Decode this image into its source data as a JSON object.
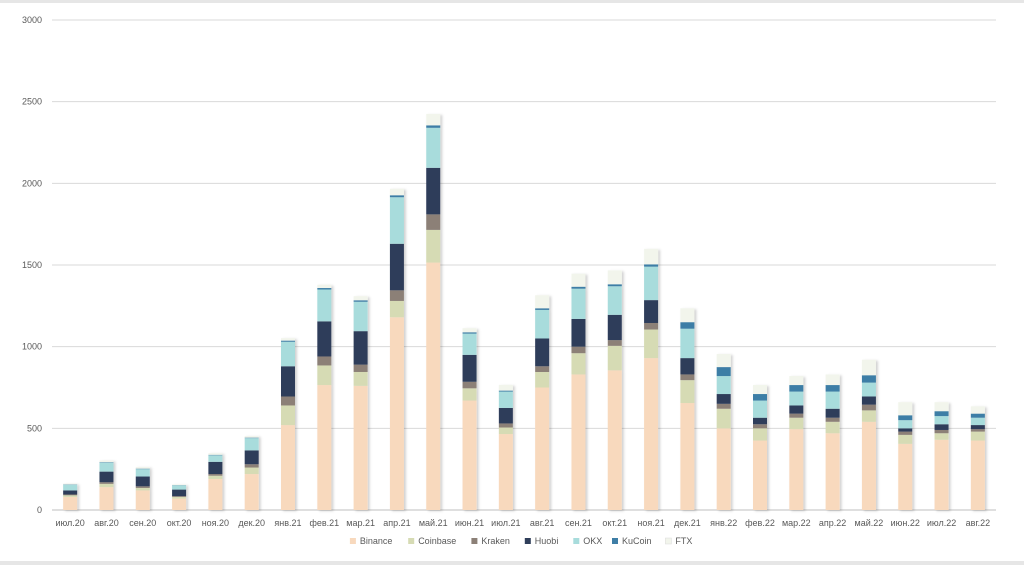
{
  "chart_data": {
    "type": "bar",
    "stacked": true,
    "title": "",
    "xlabel": "",
    "ylabel": "",
    "ylim": [
      0,
      3000
    ],
    "yticks": [
      0,
      500,
      1000,
      1500,
      2000,
      2500,
      3000
    ],
    "grid": "horizontal",
    "legend_position": "bottom",
    "categories": [
      "июл.20",
      "авг.20",
      "сен.20",
      "окт.20",
      "ноя.20",
      "дек.20",
      "янв.21",
      "фев.21",
      "мар.21",
      "апр.21",
      "май.21",
      "июн.21",
      "июл.21",
      "авг.21",
      "сен.21",
      "окт.21",
      "ноя.21",
      "дек.21",
      "янв.22",
      "фев.22",
      "мар.22",
      "апр.22",
      "май.22",
      "июн.22",
      "июл.22",
      "авг.22"
    ],
    "series": [
      {
        "name": "Binance",
        "color": "#f8d9bd",
        "values": [
          80,
          140,
          120,
          70,
          190,
          220,
          520,
          765,
          760,
          1180,
          1515,
          670,
          465,
          750,
          830,
          855,
          930,
          655,
          500,
          425,
          495,
          470,
          540,
          405,
          430,
          425
        ]
      },
      {
        "name": "Coinbase",
        "color": "#d6dbb4",
        "values": [
          10,
          20,
          15,
          10,
          20,
          40,
          120,
          120,
          85,
          100,
          200,
          75,
          40,
          95,
          130,
          150,
          175,
          140,
          120,
          75,
          70,
          70,
          70,
          55,
          40,
          55
        ]
      },
      {
        "name": "Kraken",
        "color": "#8c8077",
        "values": [
          5,
          10,
          10,
          5,
          10,
          20,
          55,
          55,
          45,
          65,
          95,
          40,
          25,
          35,
          40,
          35,
          40,
          35,
          30,
          25,
          25,
          25,
          35,
          20,
          20,
          15
        ]
      },
      {
        "name": "Huobi",
        "color": "#2f3e5a",
        "values": [
          25,
          65,
          60,
          40,
          75,
          85,
          185,
          215,
          205,
          285,
          285,
          165,
          95,
          170,
          170,
          155,
          140,
          100,
          60,
          40,
          50,
          55,
          50,
          20,
          35,
          25
        ]
      },
      {
        "name": "OKX",
        "color": "#a8dcdc",
        "values": [
          35,
          55,
          45,
          25,
          40,
          75,
          150,
          195,
          180,
          285,
          245,
          130,
          100,
          175,
          185,
          175,
          205,
          180,
          110,
          105,
          85,
          105,
          85,
          50,
          50,
          45
        ]
      },
      {
        "name": "KuCoin",
        "color": "#3e7ea6",
        "values": [
          2,
          3,
          3,
          2,
          3,
          3,
          7,
          9,
          9,
          12,
          15,
          8,
          6,
          10,
          12,
          12,
          14,
          40,
          55,
          40,
          40,
          40,
          45,
          30,
          30,
          25
        ]
      },
      {
        "name": "FTX",
        "color": "#f2f5ec",
        "values": [
          5,
          10,
          10,
          5,
          10,
          10,
          15,
          20,
          25,
          40,
          70,
          25,
          35,
          80,
          80,
          85,
          95,
          85,
          80,
          55,
          55,
          65,
          95,
          80,
          55,
          45
        ]
      }
    ]
  }
}
